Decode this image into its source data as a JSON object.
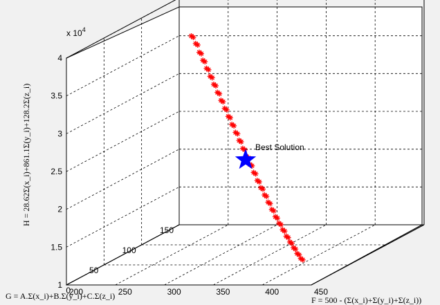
{
  "chart_data": {
    "type": "scatter",
    "projection": "3d",
    "xlabel": "F = 500 - (Σ(x_i)+Σ(y_i)+Σ(z_i))",
    "ylabel": "G = A.Σ(x_i)+B.Σ(y_i)+C.Σ(z_i)",
    "zlabel": "H = 28.62Σ(x_i)+861.1Σ(y_i)+128.2Σ(z_i)",
    "z_exponent_label": "x 10^4",
    "xlim": [
      200,
      450
    ],
    "ylim": [
      0,
      150
    ],
    "zlim": [
      10000,
      40000
    ],
    "x_ticks": [
      "200",
      "250",
      "300",
      "350",
      "400",
      "450"
    ],
    "y_ticks": [
      "0",
      "50",
      "100",
      "150"
    ],
    "z_ticks": [
      "1",
      "1.5",
      "2",
      "2.5",
      "3",
      "3.5",
      "4"
    ],
    "grid": true,
    "series": [
      {
        "marker": "asterisk",
        "color": "#ff0000",
        "points": [
          [
            220,
            140,
            35500
          ],
          [
            226,
            138,
            34600
          ],
          [
            232,
            135,
            33600
          ],
          [
            238,
            132,
            32700
          ],
          [
            244,
            129,
            31800
          ],
          [
            250,
            126,
            30900
          ],
          [
            256,
            123,
            30000
          ],
          [
            262,
            120,
            29100
          ],
          [
            268,
            117,
            28200
          ],
          [
            274,
            114,
            27300
          ],
          [
            280,
            111,
            26400
          ],
          [
            286,
            108,
            25500
          ],
          [
            292,
            105,
            24600
          ],
          [
            298,
            102,
            23700
          ],
          [
            304,
            99,
            22800
          ],
          [
            310,
            96,
            21900
          ],
          [
            316,
            93,
            21000
          ],
          [
            322,
            90,
            20100
          ],
          [
            328,
            87,
            19200
          ],
          [
            334,
            84,
            18400
          ],
          [
            340,
            81,
            17600
          ],
          [
            346,
            78,
            16800
          ],
          [
            352,
            75,
            16000
          ],
          [
            358,
            72,
            15200
          ],
          [
            364,
            69,
            14500
          ],
          [
            370,
            66,
            13800
          ],
          [
            376,
            63,
            13100
          ],
          [
            382,
            60,
            12500
          ],
          [
            388,
            57,
            11900
          ],
          [
            394,
            54,
            11300
          ],
          [
            400,
            51,
            10800
          ]
        ]
      }
    ],
    "best_solution": {
      "label": "Best Solution",
      "point": [
        310,
        95,
        21500
      ],
      "color": "#0000ff"
    }
  }
}
